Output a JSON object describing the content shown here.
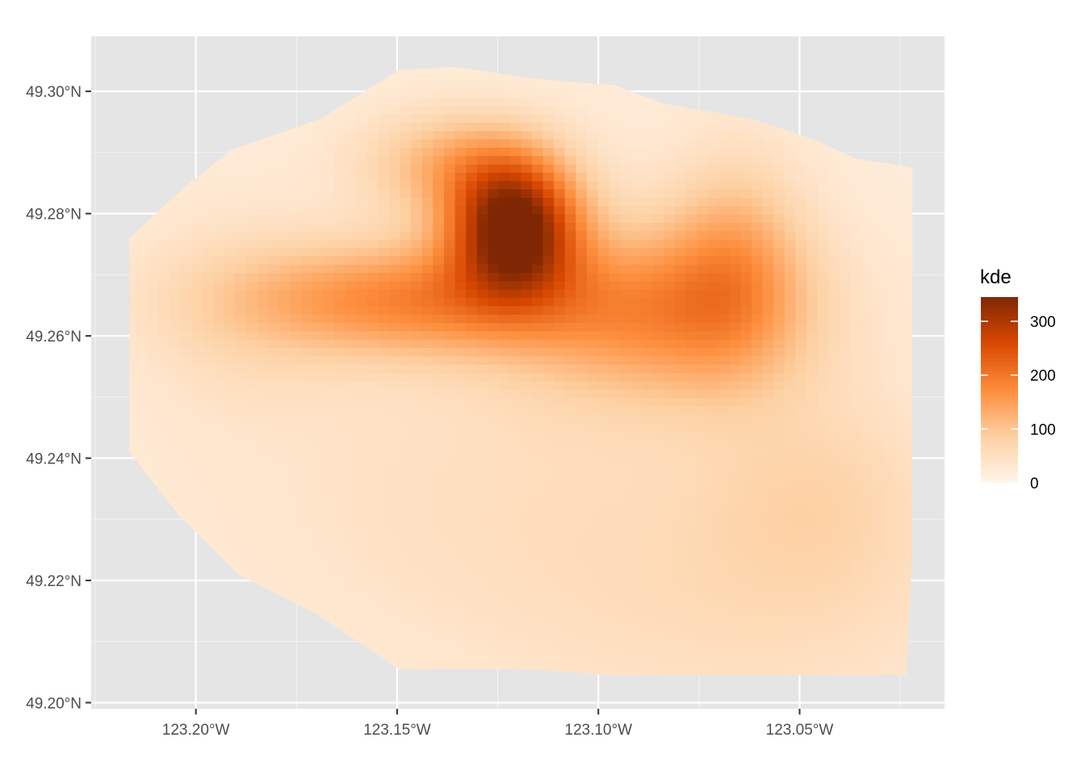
{
  "chart_data": {
    "type": "heatmap",
    "title": "",
    "xlabel": "",
    "ylabel": "",
    "x_range": [
      -123.226,
      -123.014
    ],
    "y_range": [
      49.199,
      49.309
    ],
    "x_ticks": [
      {
        "value": -123.2,
        "label": "123.20°W"
      },
      {
        "value": -123.15,
        "label": "123.15°W"
      },
      {
        "value": -123.1,
        "label": "123.10°W"
      },
      {
        "value": -123.05,
        "label": "123.05°W"
      }
    ],
    "y_ticks": [
      {
        "value": 49.3,
        "label": "49.30°N"
      },
      {
        "value": 49.28,
        "label": "49.28°N"
      },
      {
        "value": 49.26,
        "label": "49.26°N"
      },
      {
        "value": 49.24,
        "label": "49.24°N"
      },
      {
        "value": 49.22,
        "label": "49.22°N"
      },
      {
        "value": 49.2,
        "label": "49.20°N"
      }
    ],
    "grid": true,
    "legend": {
      "title": "kde",
      "position": "right",
      "range": [
        0,
        345
      ],
      "breaks": [
        {
          "value": 0,
          "label": "0"
        },
        {
          "value": 100,
          "label": "100"
        },
        {
          "value": 200,
          "label": "200"
        },
        {
          "value": 300,
          "label": "300"
        }
      ],
      "color_stops": [
        "#fff5eb",
        "#fdd0a2",
        "#fd8d3c",
        "#d94801",
        "#7f2704"
      ]
    },
    "density_peaks": [
      {
        "lon": -123.121,
        "lat": 49.278,
        "value": 345
      },
      {
        "lon": -123.147,
        "lat": 49.266,
        "value": 150
      },
      {
        "lon": -123.085,
        "lat": 49.264,
        "value": 130
      },
      {
        "lon": -123.066,
        "lat": 49.272,
        "value": 90
      },
      {
        "lon": -123.135,
        "lat": 49.288,
        "value": 100
      },
      {
        "lon": -123.045,
        "lat": 49.234,
        "value": 40
      },
      {
        "lon": -123.12,
        "lat": 49.234,
        "value": 28
      },
      {
        "lon": -123.19,
        "lat": 49.264,
        "value": 28
      },
      {
        "lon": -123.06,
        "lat": 49.215,
        "value": 26
      }
    ],
    "region_outline": [
      [
        -123.2165,
        49.2465
      ],
      [
        -123.2165,
        49.276
      ],
      [
        -123.2025,
        49.2845
      ],
      [
        -123.191,
        49.2905
      ],
      [
        -123.169,
        49.2955
      ],
      [
        -123.1495,
        49.3035
      ],
      [
        -123.1355,
        49.304
      ],
      [
        -123.115,
        49.302
      ],
      [
        -123.096,
        49.301
      ],
      [
        -123.084,
        49.298
      ],
      [
        -123.062,
        49.2955
      ],
      [
        -123.046,
        49.292
      ],
      [
        -123.036,
        49.289
      ],
      [
        -123.022,
        49.2875
      ],
      [
        -123.022,
        49.2245
      ],
      [
        -123.0235,
        49.2045
      ],
      [
        -123.098,
        49.2045
      ],
      [
        -123.118,
        49.2055
      ],
      [
        -123.1495,
        49.2055
      ],
      [
        -123.17,
        49.2145
      ],
      [
        -123.1895,
        49.221
      ],
      [
        -123.204,
        49.2305
      ],
      [
        -123.2165,
        49.241
      ]
    ]
  }
}
